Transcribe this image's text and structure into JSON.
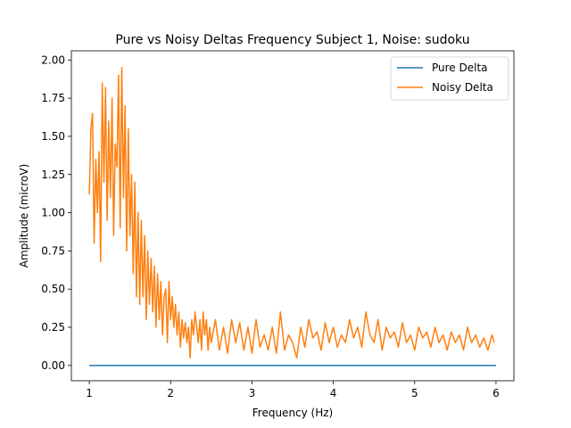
{
  "chart_data": {
    "type": "line",
    "title": "Pure vs Noisy Deltas Frequency Subject 1, Noise: sudoku",
    "xlabel": "Frequency (Hz)",
    "ylabel": "Amplitude (microV)",
    "xlim": [
      0.78,
      6.22
    ],
    "ylim": [
      -0.1,
      2.06
    ],
    "xticks": [
      1,
      2,
      3,
      4,
      5,
      6
    ],
    "xtick_labels": [
      "1",
      "2",
      "3",
      "4",
      "5",
      "6"
    ],
    "yticks": [
      0.0,
      0.25,
      0.5,
      0.75,
      1.0,
      1.25,
      1.5,
      1.75,
      2.0
    ],
    "ytick_labels": [
      "0.00",
      "0.25",
      "0.50",
      "0.75",
      "1.00",
      "1.25",
      "1.50",
      "1.75",
      "2.00"
    ],
    "grid": false,
    "legend_position": "top-right",
    "series": [
      {
        "name": "Pure Delta",
        "color": "#1f77b4",
        "x": [
          1.0,
          2.0,
          3.0,
          4.0,
          5.0,
          6.0
        ],
        "y": [
          0.0,
          0.0,
          0.0,
          0.0,
          0.0,
          0.0
        ]
      },
      {
        "name": "Noisy Delta",
        "color": "#ff7f0e",
        "x": [
          1.0,
          1.02,
          1.04,
          1.06,
          1.08,
          1.1,
          1.12,
          1.14,
          1.16,
          1.18,
          1.2,
          1.22,
          1.24,
          1.26,
          1.28,
          1.3,
          1.32,
          1.34,
          1.36,
          1.38,
          1.4,
          1.42,
          1.44,
          1.46,
          1.48,
          1.5,
          1.52,
          1.54,
          1.56,
          1.58,
          1.6,
          1.62,
          1.64,
          1.66,
          1.68,
          1.7,
          1.72,
          1.74,
          1.76,
          1.78,
          1.8,
          1.82,
          1.84,
          1.86,
          1.88,
          1.9,
          1.92,
          1.94,
          1.96,
          1.98,
          2.0,
          2.02,
          2.04,
          2.06,
          2.08,
          2.1,
          2.12,
          2.14,
          2.16,
          2.18,
          2.2,
          2.22,
          2.24,
          2.26,
          2.28,
          2.3,
          2.32,
          2.34,
          2.36,
          2.38,
          2.4,
          2.42,
          2.44,
          2.46,
          2.48,
          2.5,
          2.55,
          2.6,
          2.65,
          2.7,
          2.75,
          2.8,
          2.85,
          2.9,
          2.95,
          3.0,
          3.05,
          3.1,
          3.15,
          3.2,
          3.25,
          3.3,
          3.35,
          3.4,
          3.45,
          3.5,
          3.55,
          3.6,
          3.65,
          3.7,
          3.75,
          3.8,
          3.85,
          3.9,
          3.95,
          4.0,
          4.05,
          4.1,
          4.15,
          4.2,
          4.25,
          4.3,
          4.35,
          4.4,
          4.45,
          4.5,
          4.55,
          4.6,
          4.65,
          4.7,
          4.75,
          4.8,
          4.85,
          4.9,
          4.95,
          5.0,
          5.05,
          5.1,
          5.15,
          5.2,
          5.25,
          5.3,
          5.35,
          5.4,
          5.45,
          5.5,
          5.55,
          5.6,
          5.65,
          5.7,
          5.75,
          5.8,
          5.85,
          5.9,
          5.95,
          5.98
        ],
        "y": [
          1.12,
          1.55,
          1.65,
          0.8,
          1.35,
          1.0,
          1.4,
          0.68,
          1.85,
          1.2,
          1.82,
          0.95,
          1.6,
          1.1,
          1.75,
          0.85,
          1.45,
          1.3,
          1.9,
          0.9,
          1.95,
          1.1,
          1.7,
          0.75,
          1.55,
          0.85,
          1.25,
          0.6,
          1.2,
          0.45,
          1.0,
          0.4,
          0.95,
          0.45,
          0.85,
          0.3,
          0.75,
          0.4,
          0.7,
          0.35,
          0.65,
          0.25,
          0.6,
          0.3,
          0.55,
          0.2,
          0.45,
          0.5,
          0.15,
          0.55,
          0.3,
          0.45,
          0.25,
          0.4,
          0.2,
          0.35,
          0.12,
          0.3,
          0.18,
          0.28,
          0.15,
          0.25,
          0.05,
          0.3,
          0.2,
          0.35,
          0.25,
          0.15,
          0.3,
          0.1,
          0.35,
          0.2,
          0.3,
          0.1,
          0.25,
          0.15,
          0.3,
          0.1,
          0.25,
          0.08,
          0.3,
          0.15,
          0.28,
          0.1,
          0.25,
          0.08,
          0.3,
          0.12,
          0.2,
          0.1,
          0.25,
          0.08,
          0.35,
          0.1,
          0.2,
          0.15,
          0.05,
          0.25,
          0.12,
          0.3,
          0.18,
          0.22,
          0.1,
          0.28,
          0.15,
          0.25,
          0.12,
          0.2,
          0.15,
          0.3,
          0.18,
          0.25,
          0.12,
          0.35,
          0.2,
          0.15,
          0.3,
          0.1,
          0.25,
          0.18,
          0.22,
          0.12,
          0.28,
          0.15,
          0.2,
          0.1,
          0.25,
          0.18,
          0.22,
          0.12,
          0.25,
          0.15,
          0.2,
          0.1,
          0.22,
          0.15,
          0.2,
          0.1,
          0.25,
          0.15,
          0.2,
          0.12,
          0.18,
          0.1,
          0.2,
          0.15
        ]
      }
    ]
  }
}
